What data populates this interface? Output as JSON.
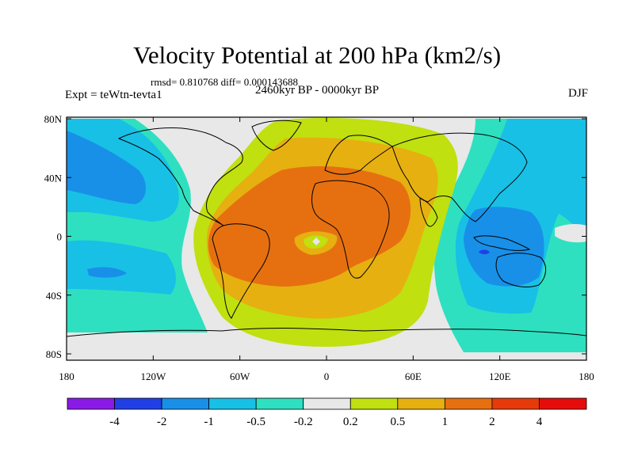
{
  "header": {
    "title": "Velocity Potential at 200 hPa (km2/s)",
    "stats": "rmsd= 0.810768 diff= 0.000143688",
    "period": "2460kyr BP - 0000kyr BP",
    "experiment": "Expt = teWtn-tevta1",
    "season": "DJF"
  },
  "axes": {
    "y_ticks": [
      "80N",
      "40N",
      "0",
      "40S",
      "80S"
    ],
    "x_ticks": [
      "180",
      "120W",
      "60W",
      "0",
      "60E",
      "120E",
      "180"
    ]
  },
  "colorbar": {
    "labels": [
      "-4",
      "-2",
      "-1",
      "-0.5",
      "-0.2",
      "0.2",
      "0.5",
      "1",
      "2",
      "4"
    ],
    "colors": [
      "#8a1ae6",
      "#2040e6",
      "#1890e8",
      "#18c0e6",
      "#2ee0c0",
      "#e8e8e8",
      "#c0e010",
      "#e6b010",
      "#e67010",
      "#e63a0a",
      "#e60c0c"
    ]
  },
  "palette": {
    "neg_weak": "#2ee0c0",
    "neg_mid": "#18c0e6",
    "neg_strong": "#1890e8",
    "neg_max": "#2040e6",
    "neutral": "#e8e8e8",
    "pos_weak": "#c0e010",
    "pos_mid": "#e6b010",
    "pos_strong": "#e67010"
  }
}
